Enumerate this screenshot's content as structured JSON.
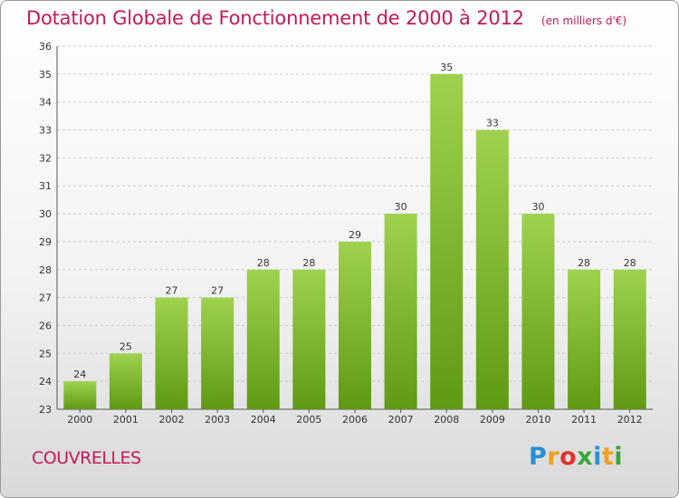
{
  "header": {
    "title": "Dotation Globale de Fonctionnement de 2000 à 2012",
    "subtitle": "(en milliers d'€)"
  },
  "commune": "COUVRELLES",
  "logo": {
    "text": "Proxiti"
  },
  "colors": {
    "title": "#c4195a",
    "bar_light": "#9fd24e",
    "bar_dark": "#5f9a13",
    "grid": "#cccccc"
  },
  "chart_data": {
    "type": "bar",
    "categories": [
      "2000",
      "2001",
      "2002",
      "2003",
      "2004",
      "2005",
      "2006",
      "2007",
      "2008",
      "2009",
      "2010",
      "2011",
      "2012"
    ],
    "values": [
      24,
      25,
      27,
      27,
      28,
      28,
      29,
      30,
      35,
      33,
      30,
      28,
      28
    ],
    "ylim": [
      23,
      36
    ],
    "yticks": [
      23,
      24,
      25,
      26,
      27,
      28,
      29,
      30,
      31,
      32,
      33,
      34,
      35,
      36
    ],
    "grid": true,
    "legend": "none",
    "data_labels": true
  }
}
